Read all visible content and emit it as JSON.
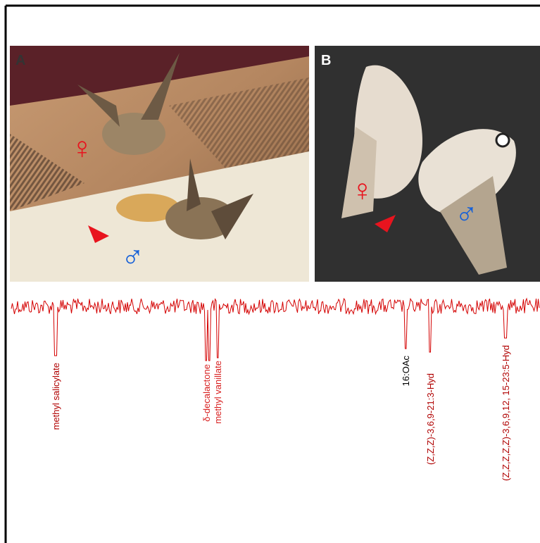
{
  "panels": [
    {
      "label": "A",
      "female": "♀",
      "male": "♂"
    },
    {
      "label": "B",
      "female": "♀",
      "male": "♂"
    }
  ],
  "peaks": [
    {
      "label": "methyl salicylate"
    },
    {
      "label": "δ-decalactone"
    },
    {
      "label": "methyl vanillate"
    },
    {
      "label": "16:OAc"
    },
    {
      "label": "(Z,Z,Z)-3,6,9-21:3-Hyd"
    },
    {
      "label": "(Z,Z,Z,Z,Z)-3,6,9,12, 15-23:5-Hyd"
    }
  ]
}
